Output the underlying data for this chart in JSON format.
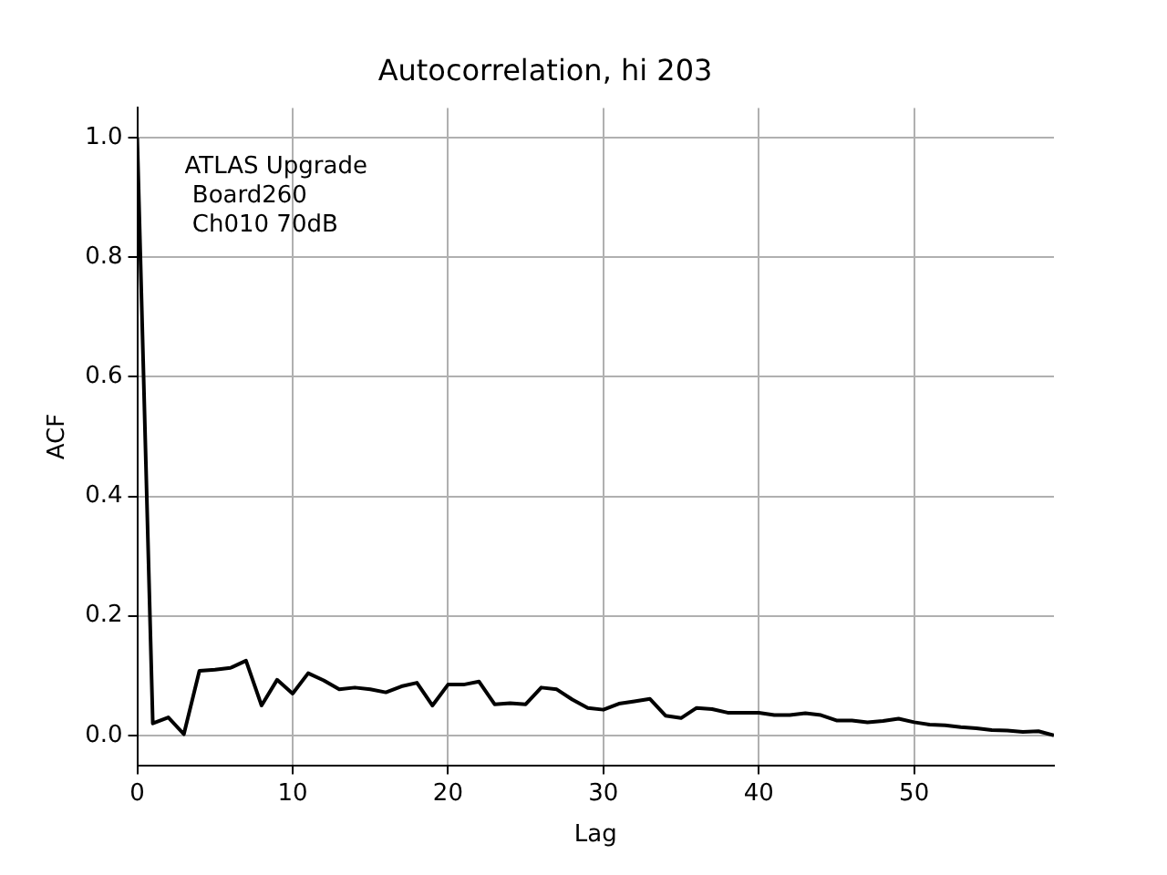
{
  "chart_data": {
    "type": "line",
    "title": "Autocorrelation, hi 203",
    "xlabel": "Lag",
    "ylabel": "ACF",
    "annotations": [
      "ATLAS Upgrade\n Board260\n Ch010 70dB"
    ],
    "x": [
      0,
      1,
      2,
      3,
      4,
      5,
      6,
      7,
      8,
      9,
      10,
      11,
      12,
      13,
      14,
      15,
      16,
      17,
      18,
      19,
      20,
      21,
      22,
      23,
      24,
      25,
      26,
      27,
      28,
      29,
      30,
      31,
      32,
      33,
      34,
      35,
      36,
      37,
      38,
      39,
      40,
      41,
      42,
      43,
      44,
      45,
      46,
      47,
      48,
      49,
      50,
      51,
      52,
      53,
      54,
      55,
      56,
      57,
      58,
      59
    ],
    "series": [
      {
        "color": "#000000",
        "values": [
          1.0,
          0.02,
          0.03,
          0.002,
          0.108,
          0.11,
          0.113,
          0.125,
          0.05,
          0.093,
          0.07,
          0.104,
          0.092,
          0.077,
          0.08,
          0.077,
          0.072,
          0.082,
          0.088,
          0.05,
          0.085,
          0.085,
          0.09,
          0.052,
          0.054,
          0.052,
          0.08,
          0.077,
          0.06,
          0.046,
          0.043,
          0.053,
          0.057,
          0.061,
          0.033,
          0.029,
          0.046,
          0.044,
          0.038,
          0.038,
          0.038,
          0.034,
          0.034,
          0.037,
          0.034,
          0.025,
          0.025,
          0.022,
          0.024,
          0.028,
          0.022,
          0.018,
          0.017,
          0.014,
          0.012,
          0.009,
          0.008,
          0.006,
          0.007,
          0.0
        ]
      }
    ],
    "xlim": [
      0,
      59
    ],
    "ylim": [
      -0.05,
      1.05
    ],
    "xticks": [
      0,
      10,
      20,
      30,
      40,
      50
    ],
    "yticks": [
      {
        "value": 0,
        "label": "0.0"
      },
      0.2,
      0.4,
      0.6,
      0.8,
      {
        "value": 1,
        "label": "1.0"
      }
    ],
    "grid": true,
    "legend": false,
    "marker": "none",
    "line_style": "solid"
  }
}
